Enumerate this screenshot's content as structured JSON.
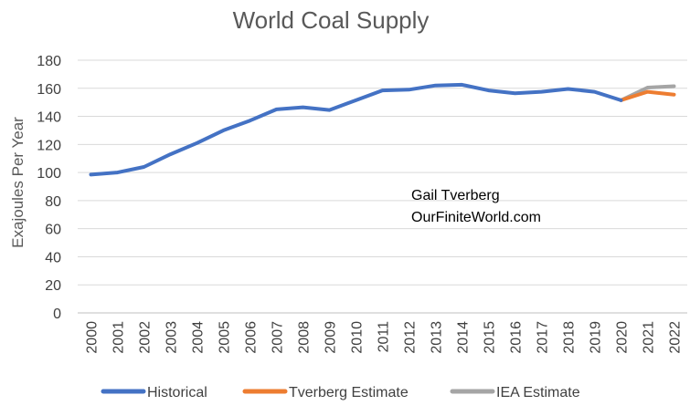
{
  "chart_data": {
    "type": "line",
    "title": "World Coal Supply",
    "ylabel": "Exajoules Per Year",
    "xlabel": "",
    "categories": [
      "2000",
      "2001",
      "2002",
      "2003",
      "2004",
      "2005",
      "2006",
      "2007",
      "2008",
      "2009",
      "2010",
      "2011",
      "2012",
      "2013",
      "2014",
      "2015",
      "2016",
      "2017",
      "2018",
      "2019",
      "2020",
      "2021",
      "2022"
    ],
    "ylim": [
      0,
      180
    ],
    "yticks": [
      0,
      20,
      40,
      60,
      80,
      100,
      120,
      140,
      160,
      180
    ],
    "grid": true,
    "legend_position": "bottom",
    "annotation": [
      "Gail Tverberg",
      "OurFiniteWorld.com"
    ],
    "series": [
      {
        "name": "Historical",
        "color": "#4472C4",
        "values": [
          98.5,
          100,
          104,
          113,
          121,
          130,
          137,
          145,
          146.5,
          144.5,
          151.5,
          158.5,
          159,
          162,
          162.5,
          158.5,
          156.5,
          157.5,
          159.5,
          157.5,
          151.5,
          null,
          null
        ]
      },
      {
        "name": "Tverberg Estimate",
        "color": "#ED7D31",
        "values": [
          null,
          null,
          null,
          null,
          null,
          null,
          null,
          null,
          null,
          null,
          null,
          null,
          null,
          null,
          null,
          null,
          null,
          null,
          null,
          null,
          151.5,
          157.5,
          155.5
        ]
      },
      {
        "name": "IEA Estimate",
        "color": "#A5A5A5",
        "values": [
          null,
          null,
          null,
          null,
          null,
          null,
          null,
          null,
          null,
          null,
          null,
          null,
          null,
          null,
          null,
          null,
          null,
          null,
          null,
          null,
          151.5,
          160.5,
          161.5
        ]
      }
    ]
  }
}
